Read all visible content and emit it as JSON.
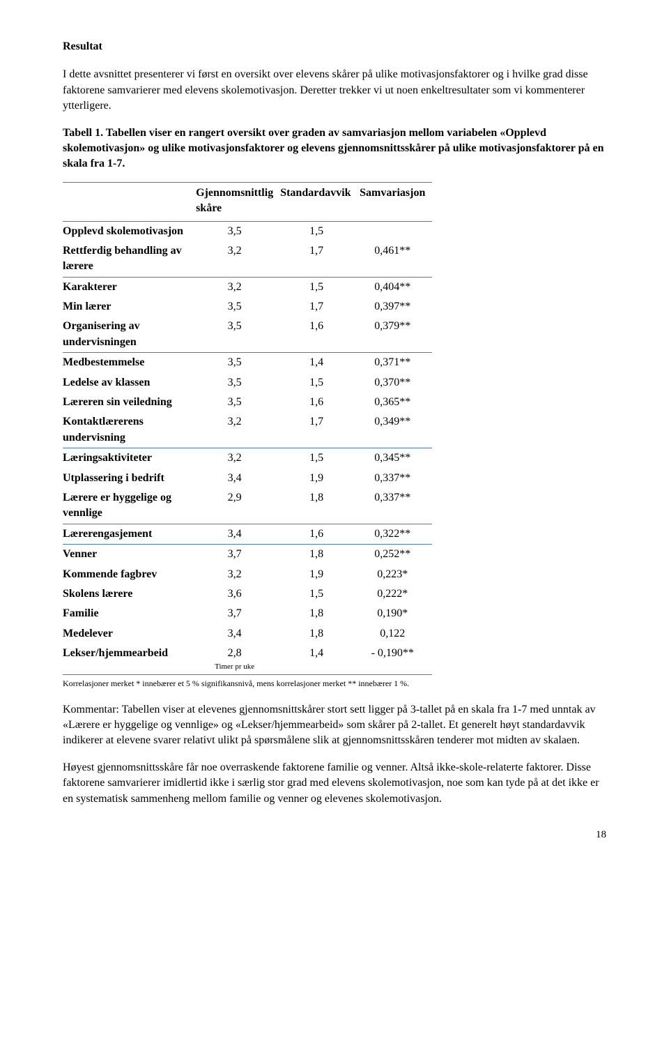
{
  "title": "Resultat",
  "para1": "I dette avsnittet presenterer vi først en oversikt over elevens skårer på ulike motivasjonsfaktorer og i hvilke grad disse faktorene samvarierer med elevens skolemotivasjon. Deretter trekker vi ut noen enkeltresultater som vi kommenterer ytterligere.",
  "tableCaption": "Tabell 1. Tabellen viser en rangert oversikt over graden av samvariasjon mellom variabelen «Opplevd skolemotivasjon» og ulike motivasjonsfaktorer og elevens gjennomsnittsskårer på ulike motivasjonsfaktorer på en skala fra 1-7.",
  "columns": {
    "label": "",
    "mean": "Gjennomsnittlig skåre",
    "sd": "Standardavvik",
    "corr": "Samvariasjon"
  },
  "rows": [
    {
      "label": "Opplevd skolemotivasjon",
      "mean": "3,5",
      "sd": "1,5",
      "corr": "",
      "sep": false
    },
    {
      "label": "Rettferdig behandling av lærere",
      "mean": "3,2",
      "sd": "1,7",
      "corr": "0,461**",
      "sep": true
    },
    {
      "label": "Karakterer",
      "mean": "3,2",
      "sd": "1,5",
      "corr": "0,404**",
      "sep": false
    },
    {
      "label": "Min lærer",
      "mean": "3,5",
      "sd": "1,7",
      "corr": "0,397**",
      "sep": false
    },
    {
      "label": "Organisering av undervisningen",
      "mean": "3,5",
      "sd": "1,6",
      "corr": "0,379**",
      "sep": true
    },
    {
      "label": "Medbestemmelse",
      "mean": "3,5",
      "sd": "1,4",
      "corr": "0,371**",
      "sep": false
    },
    {
      "label": "Ledelse av klassen",
      "mean": "3,5",
      "sd": "1,5",
      "corr": "0,370**",
      "sep": false
    },
    {
      "label": "Læreren sin veiledning",
      "mean": "3,5",
      "sd": "1,6",
      "corr": "0,365**",
      "sep": false
    },
    {
      "label": "Kontaktlærerens undervisning",
      "mean": "3,2",
      "sd": "1,7",
      "corr": "0,349**",
      "sep": true
    },
    {
      "label": "Læringsaktiviteter",
      "mean": "3,2",
      "sd": "1,5",
      "corr": "0,345**",
      "sep": false
    },
    {
      "label": "Utplassering i bedrift",
      "mean": "3,4",
      "sd": "1,9",
      "corr": "0,337**",
      "sep": false
    },
    {
      "label": "Lærere er hyggelige og vennlige",
      "mean": "2,9",
      "sd": "1,8",
      "corr": "0,337**",
      "sep": true
    },
    {
      "label": "Lærerengasjement",
      "mean": "3,4",
      "sd": "1,6",
      "corr": "0,322**",
      "sep": true
    },
    {
      "label": "Venner",
      "mean": "3,7",
      "sd": "1,8",
      "corr": "0,252**",
      "sep": false
    },
    {
      "label": "Kommende fagbrev",
      "mean": "3,2",
      "sd": "1,9",
      "corr": "0,223*",
      "sep": false
    },
    {
      "label": "Skolens lærere",
      "mean": "3,6",
      "sd": "1,5",
      "corr": "0,222*",
      "sep": false
    },
    {
      "label": "Familie",
      "mean": "3,7",
      "sd": "1,8",
      "corr": "0,190*",
      "sep": false
    },
    {
      "label": "Medelever",
      "mean": "3,4",
      "sd": "1,8",
      "corr": "0,122",
      "sep": false
    },
    {
      "label": "Lekser/hjemmearbeid",
      "mean": "2,8",
      "sd": "1,4",
      "corr": "- 0,190**",
      "sep": true,
      "subnote": "Timer pr uke"
    }
  ],
  "footnote": "Korrelasjoner merket * innebærer et 5 % signifikansnivå, mens korrelasjoner merket ** innebærer 1 %.",
  "para2": "Kommentar: Tabellen viser at elevenes gjennomsnittskårer stort sett ligger på 3-tallet på en skala fra 1-7 med unntak av «Lærere er hyggelige og vennlige» og «Lekser/hjemmearbeid» som skårer på 2-tallet. Et generelt høyt standardavvik indikerer at elevene svarer relativt ulikt på spørsmålene slik at gjennomsnittsskåren tenderer mot midten av skalaen.",
  "para3": "Høyest gjennomsnittsskåre får noe overraskende faktorene familie og venner. Altså ikke-skole-relaterte faktorer. Disse faktorene samvarierer imidlertid ikke i særlig stor grad med elevens skolemotivasjon, noe som kan tyde på at det ikke er en systematisk sammenheng mellom familie og venner og elevenes skolemotivasjon.",
  "pageNumber": "18",
  "colors": {
    "ruleColor": "#4a7ab0",
    "text": "#000000",
    "background": "#ffffff"
  }
}
